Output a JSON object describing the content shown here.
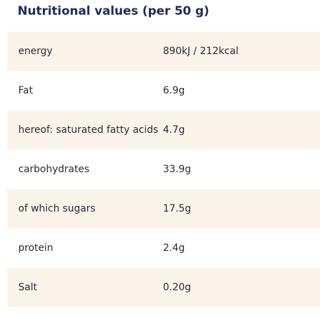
{
  "title": "Nutritional values (per 50 g)",
  "rows": [
    {
      "label": "energy",
      "value": "890kJ / 212kcal"
    },
    {
      "label": "Fat",
      "value": "6.9g"
    },
    {
      "label": "hereof: saturated fatty acids",
      "value": "4.7g"
    },
    {
      "label": "carbohydrates",
      "value": "33.9g"
    },
    {
      "label": "of which sugars",
      "value": "17.5g"
    },
    {
      "label": "protein",
      "value": "2.4g"
    },
    {
      "label": "Salt",
      "value": "0.20g"
    }
  ],
  "colors": {
    "title": "#1f2a5a",
    "text": "#2a2a35",
    "stripe": "#fbf4ea"
  }
}
